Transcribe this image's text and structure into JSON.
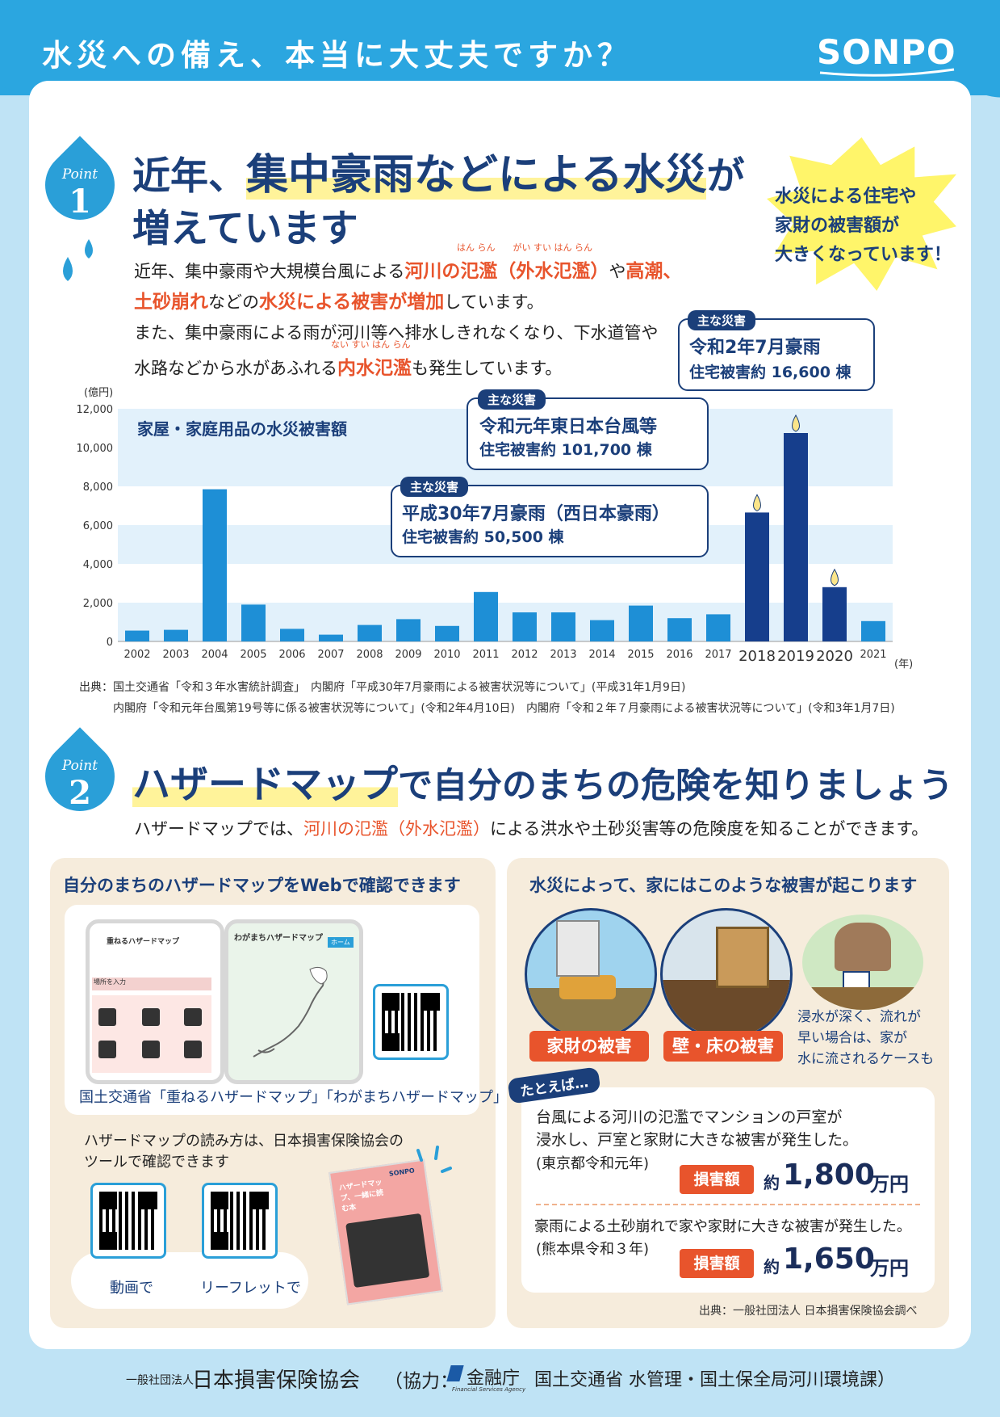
{
  "header": {
    "title": "水災への備え、本当に大丈夫ですか？",
    "logo": "SONPO"
  },
  "point1": {
    "badge_word": "Point",
    "badge_num": "1",
    "heading_pre": "近年、",
    "heading_hl": "集中豪雨などによる水災",
    "heading_post": "が",
    "heading_line2": "増えています",
    "burst_lines": [
      "水災による住宅や",
      "家財の被害額が",
      "大きくなっています！"
    ],
    "p1_a": "近年、集中豪雨や大規模台風による",
    "p1_b": "河川の氾濫（外水氾濫）",
    "p1_c": "や",
    "p1_d": "高潮、",
    "ruby1": "はん らん　　がい すい はん らん",
    "p2_a": "土砂崩れ",
    "p2_b": "などの",
    "p2_c": "水災による被害が増加",
    "p2_d": "しています。",
    "p3": "また、集中豪雨による雨が河川等へ排水しきれなくなり、下水道管や",
    "ruby2": "ない すい はん らん",
    "p4_a": "水路などから水があふれる",
    "p4_b": "内水氾濫",
    "p4_c": "も発生しています。"
  },
  "callouts": [
    {
      "tag": "主な災害",
      "t1": "令和2年7月豪雨",
      "t2": "住宅被害約 16,600 棟"
    },
    {
      "tag": "主な災害",
      "t1": "令和元年東日本台風等",
      "t2": "住宅被害約 101,700 棟"
    },
    {
      "tag": "主な災害",
      "t1": "平成30年7月豪雨（西日本豪雨）",
      "t2": "住宅被害約 50,500 棟"
    }
  ],
  "chart_data": {
    "type": "bar",
    "title": "家屋・家庭用品の水災被害額",
    "ylabel": "(億円)",
    "xlabel": "(年)",
    "ylim": [
      0,
      12000
    ],
    "yticks": [
      "0",
      "2,000",
      "4,000",
      "6,000",
      "8,000",
      "10,000",
      "12,000"
    ],
    "categories": [
      "2002",
      "2003",
      "2004",
      "2005",
      "2006",
      "2007",
      "2008",
      "2009",
      "2010",
      "2011",
      "2012",
      "2013",
      "2014",
      "2015",
      "2016",
      "2017",
      "2018",
      "2019",
      "2020",
      "2021"
    ],
    "values": [
      560,
      600,
      7850,
      1900,
      650,
      350,
      850,
      1150,
      800,
      2550,
      1500,
      1500,
      1100,
      1850,
      1200,
      1400,
      6650,
      10750,
      2800,
      1050
    ],
    "highlighted": [
      "2018",
      "2019",
      "2020"
    ],
    "colors": {
      "normal": "#1e8fd6",
      "highlight": "#163e8c",
      "band": "#e2f1fb"
    }
  },
  "sources1": {
    "line1": "出典：国土交通省「令和３年水害統計調査」　内閣府「平成30年7月豪雨による被害状況等について」(平成31年1月9日)",
    "line2": "内閣府「令和元年台風第19号等に係る被害状況等について」(令和2年4月10日)　内閣府「令和２年７月豪雨による被害状況等について」(令和3年1月7日)"
  },
  "point2": {
    "badge_word": "Point",
    "badge_num": "2",
    "heading_hl": "ハザードマップ",
    "heading_post": "で自分のまちの危険を知りましょう",
    "desc_a": "ハザードマップでは、",
    "desc_b": "河川の氾濫（外水氾濫）",
    "desc_c": "による洪水や土砂災害等の危険度を知ることができます。"
  },
  "left_box": {
    "title": "自分のまちのハザードマップをWebで確認できます",
    "screen1_title": "重ねるハザードマップ",
    "screen1_field": "場所を入力",
    "screen2_title": "わがまちハザードマップ",
    "screen2_btn": "ホーム",
    "caption": "国土交通省「重ねるハザードマップ」「わがまちハザードマップ」",
    "tool_l1": "ハザードマップの読み方は、日本損害保険協会の",
    "tool_l2": "ツールで確認できます",
    "qr_label_1": "動画で",
    "qr_label_2": "リーフレットで",
    "leaflet_title": "ハザードマップ、一緒に読む本",
    "leaflet_logo": "SONPO"
  },
  "right_box": {
    "title": "水災によって、家にはこのような被害が起こります",
    "tag1": "家財の被害",
    "tag2": "壁・床の被害",
    "note": [
      "浸水が深く、流れが",
      "早い場合は、家が",
      "水に流されるケースも"
    ],
    "example_tag": "たとえば…",
    "case1_l1": "台風による河川の氾濫でマンションの戸室が",
    "case1_l2": "浸水し、戸室と家財に大きな被害が発生した。",
    "case1_l3": "(東京都令和元年)",
    "loss_label": "損害額",
    "case1_amount_pre": "約",
    "case1_amount": "1,800",
    "case1_unit": "万円",
    "case2_l1": "豪雨による土砂崩れで家や家財に大きな被害が発生した。",
    "case2_l2": "(熊本県令和３年)",
    "case2_amount_pre": "約",
    "case2_amount": "1,650",
    "case2_unit": "万円",
    "source": "出典：一般社団法人 日本損害保険協会調べ"
  },
  "footer": {
    "org_prefix": "一般社団法人",
    "org": "日本損害保険協会",
    "coop": "（協力：",
    "fsa": "金融庁",
    "fsa_en": "Financial Services Agency",
    "mlit": "国土交通省 水管理・国土保全局河川環境課）"
  }
}
